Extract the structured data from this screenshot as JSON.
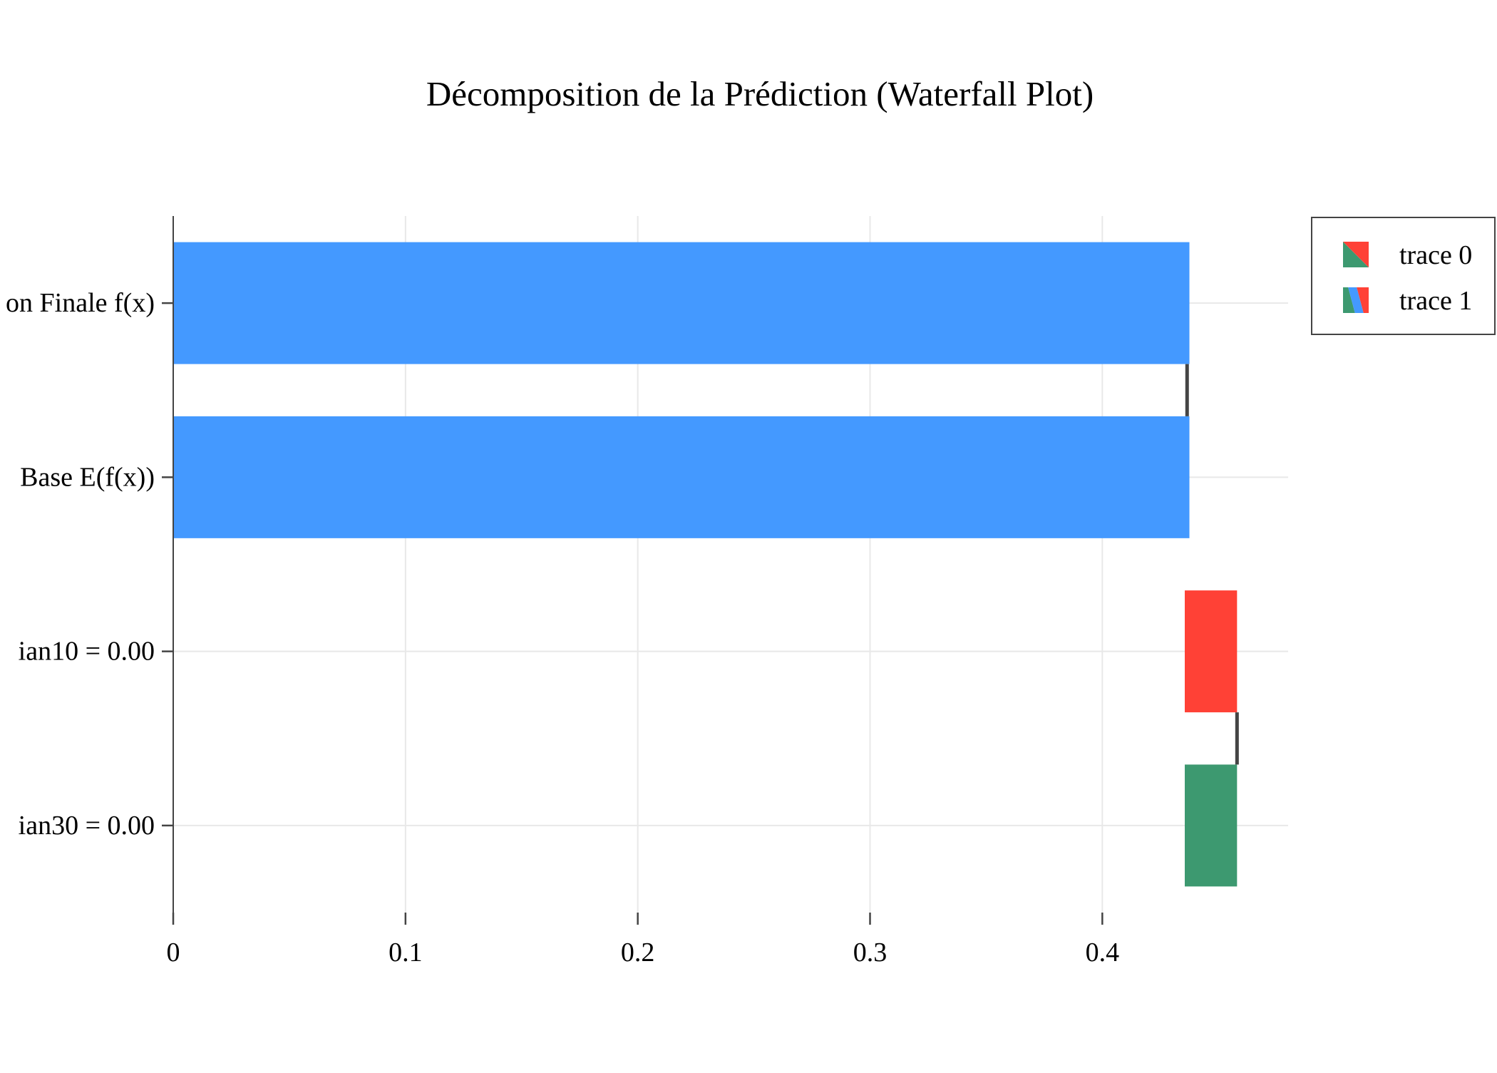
{
  "chart_data": {
    "type": "bar",
    "orientation": "horizontal",
    "subtype": "waterfall",
    "title": "Décomposition de la Prédiction (Waterfall Plot)",
    "xlabel": "",
    "ylabel": "",
    "xlim": [
      0,
      0.48
    ],
    "xticks": [
      0,
      0.1,
      0.2,
      0.3,
      0.4
    ],
    "xtick_labels": [
      "0",
      "0.1",
      "0.2",
      "0.3",
      "0.4"
    ],
    "categories": [
      "ian30 = 0.00",
      "ian10 = 0.00",
      "Base E(f(x))",
      "on Finale f(x)"
    ],
    "bars": [
      {
        "category": "ian30 = 0.00",
        "base": 0.4355,
        "value": 0.0225,
        "color": "#3d9970"
      },
      {
        "category": "ian10 = 0.00",
        "base": 0.4355,
        "value": 0.0225,
        "color": "#ff4136"
      },
      {
        "category": "Base E(f(x))",
        "base": 0,
        "value": 0.4375,
        "color": "#4499ff"
      },
      {
        "category": "on Finale f(x)",
        "base": 0,
        "value": 0.4375,
        "color": "#4499ff"
      }
    ],
    "connectors": [
      {
        "x": 0.458,
        "from": "ian30 = 0.00",
        "to": "ian10 = 0.00"
      },
      {
        "x": 0.4365,
        "from": "Base E(f(x))",
        "to": "on Finale f(x)"
      }
    ],
    "series": [
      {
        "name": "trace 0",
        "legend_colors": [
          "#3d9970",
          "#ff4136"
        ]
      },
      {
        "name": "trace 1",
        "legend_colors": [
          "#3d9970",
          "#4499ff",
          "#ff4136"
        ]
      }
    ],
    "grid": true,
    "legend_position": "top-right",
    "colors": {
      "increasing": "#3d9970",
      "decreasing": "#ff4136",
      "total": "#4499ff",
      "connector": "#444444",
      "grid": "#e8e8e8",
      "axis": "#444444"
    }
  }
}
